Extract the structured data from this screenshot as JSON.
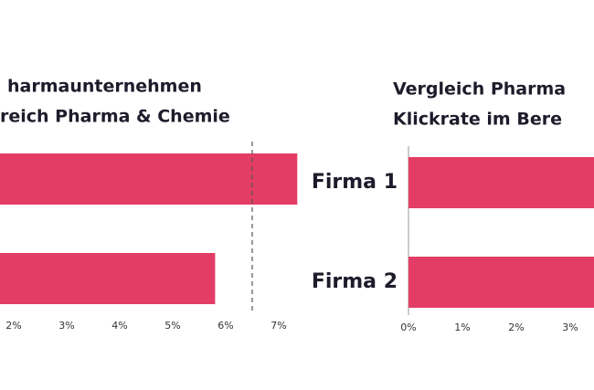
{
  "chart_data": [
    {
      "type": "bar",
      "orientation": "horizontal",
      "title": [
        "harmaunternehmen",
        "reich Pharma & Chemie"
      ],
      "categories": [
        null,
        null
      ],
      "values": [
        7.35,
        5.8
      ],
      "color": "#e33d65",
      "reference_line": 6.5,
      "xlim": [
        0,
        7.5
      ],
      "xticks": [
        {
          "value": 2,
          "label": "2%"
        },
        {
          "value": 3,
          "label": "3%"
        },
        {
          "value": 4,
          "label": "4%"
        },
        {
          "value": 5,
          "label": "5%"
        },
        {
          "value": 6,
          "label": "6%"
        },
        {
          "value": 7,
          "label": "7%"
        }
      ]
    },
    {
      "type": "bar",
      "orientation": "horizontal",
      "title": [
        "Vergleich Pharma",
        "Klickrate im Bere"
      ],
      "categories": [
        "Firma 1",
        "Firma 2"
      ],
      "values": [
        3.45,
        3.45
      ],
      "color": "#e33d65",
      "xlim": [
        0,
        3.44
      ],
      "xticks": [
        {
          "value": 0,
          "label": "0%"
        },
        {
          "value": 1,
          "label": "1%"
        },
        {
          "value": 2,
          "label": "2%"
        },
        {
          "value": 3,
          "label": "3%"
        }
      ]
    }
  ]
}
